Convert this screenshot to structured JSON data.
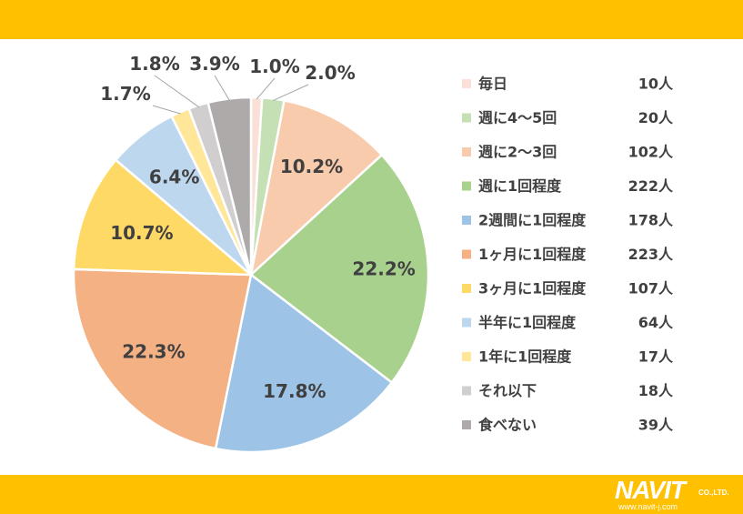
{
  "chart_data": {
    "type": "pie",
    "categories": [
      "毎日",
      "週に4〜5回",
      "週に2〜3回",
      "週に1回程度",
      "2週間に1回程度",
      "1ヶ月に1回程度",
      "3ヶ月に1回程度",
      "半年に1回程度",
      "1年に1回程度",
      "それ以下",
      "食べない"
    ],
    "values": [
      10,
      20,
      102,
      222,
      178,
      223,
      107,
      64,
      17,
      18,
      39
    ],
    "value_labels": [
      "10人",
      "20人",
      "102人",
      "222人",
      "178人",
      "223人",
      "107人",
      "64人",
      "17人",
      "18人",
      "39人"
    ],
    "percent_labels": [
      "1.0%",
      "2.0%",
      "10.2%",
      "22.2%",
      "17.8%",
      "22.3%",
      "10.7%",
      "6.4%",
      "1.7%",
      "1.8%",
      "3.9%"
    ],
    "colors": [
      "#fbe0d8",
      "#c5e0b4",
      "#f8cbad",
      "#a9d18e",
      "#9dc3e6",
      "#f4b183",
      "#ffd966",
      "#bdd7ee",
      "#ffe699",
      "#d0cece",
      "#aeaaaa"
    ],
    "legend_position": "right",
    "start_angle": "top, clockwise"
  },
  "logo": {
    "word": "NAVIT",
    "company": "CO.,LTD.",
    "url": "www.navit-j.com"
  }
}
